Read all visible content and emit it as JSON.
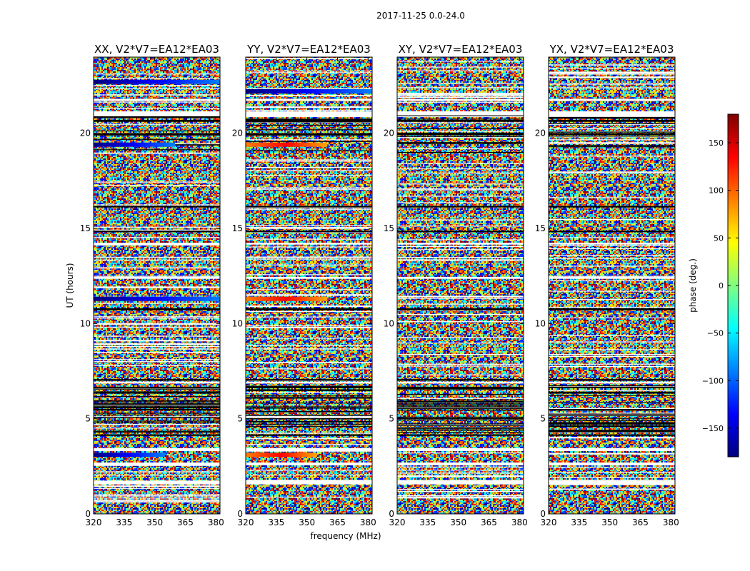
{
  "chart_data": {
    "type": "heatmap",
    "suptitle": "2017-11-25 0.0-24.0",
    "xlabel": "frequency (MHz)",
    "ylabel": "UT (hours)",
    "xlim": [
      320,
      382
    ],
    "ylim": [
      0,
      24
    ],
    "xticks": [
      320,
      335,
      350,
      365,
      380
    ],
    "xtick_labels": [
      "320",
      "335",
      "350",
      "365",
      "380"
    ],
    "yticks": [
      0,
      5,
      10,
      15,
      20
    ],
    "ytick_labels": [
      "0",
      "5",
      "10",
      "15",
      "20"
    ],
    "panels": [
      {
        "title": "XX, V2*V7=EA12*EA03",
        "structured_bands": [
          {
            "ut": 3.1,
            "from": 355,
            "to": 320,
            "kind": "dark"
          },
          {
            "ut": 11.3,
            "from": 320,
            "to": 382,
            "kind": "dark"
          },
          {
            "ut": 19.4,
            "from": 360,
            "to": 320,
            "kind": "dark"
          },
          {
            "ut": 22.7,
            "from": 320,
            "to": 382,
            "kind": "dark"
          }
        ]
      },
      {
        "title": "YY, V2*V7=EA12*EA03",
        "structured_bands": [
          {
            "ut": 3.1,
            "from": 320,
            "to": 355,
            "kind": "warm"
          },
          {
            "ut": 11.3,
            "from": 320,
            "to": 360,
            "kind": "warm"
          },
          {
            "ut": 19.4,
            "from": 320,
            "to": 360,
            "kind": "warm"
          },
          {
            "ut": 22.2,
            "from": 320,
            "to": 382,
            "kind": "dark"
          }
        ]
      },
      {
        "title": "XY, V2*V7=EA12*EA03",
        "structured_bands": []
      },
      {
        "title": "YX, V2*V7=EA12*EA03",
        "structured_bands": []
      }
    ],
    "blank_rows_ut": [
      [
        1.55,
        1.75
      ],
      [
        2.55,
        2.7
      ],
      [
        3.3,
        3.45
      ],
      [
        6.85,
        6.95
      ],
      [
        12.35,
        12.45
      ],
      [
        14.15,
        14.25
      ],
      [
        20.85,
        21.15
      ],
      [
        21.7,
        21.8
      ]
    ],
    "dark_rows_ut": [
      [
        4.1,
        4.18
      ],
      [
        6.6,
        6.68
      ],
      [
        7.0,
        7.08
      ],
      [
        10.7,
        10.8
      ],
      [
        14.8,
        14.88
      ],
      [
        16.1,
        16.18
      ],
      [
        19.9,
        20.0
      ],
      [
        20.6,
        20.7
      ]
    ],
    "colorbar": {
      "label": "phase (deg.)",
      "range": [
        -180,
        180
      ],
      "ticks": [
        -150,
        -100,
        -50,
        0,
        50,
        100,
        150
      ],
      "tick_labels": [
        "−150",
        "−100",
        "−50",
        "0",
        "50",
        "100",
        "150"
      ],
      "colormap": [
        "#00007f",
        "#0000ff",
        "#007fff",
        "#00ffff",
        "#7fff7f",
        "#ffff00",
        "#ff7f00",
        "#ff0000",
        "#7f0000"
      ]
    }
  }
}
